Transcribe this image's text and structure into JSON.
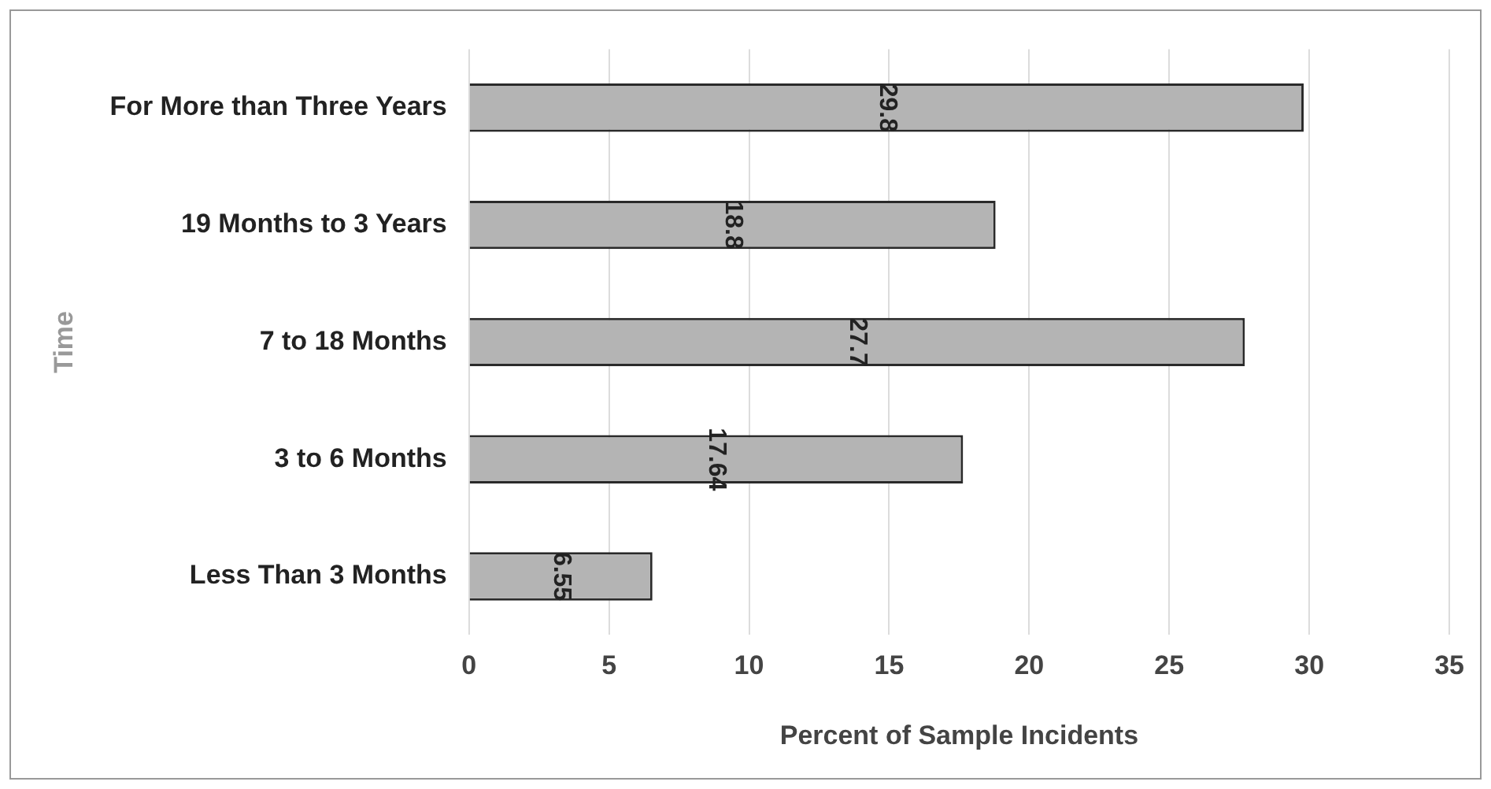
{
  "chart_data": {
    "type": "bar",
    "orientation": "horizontal",
    "xlabel": "Percent of Sample Incidents",
    "ylabel": "Time",
    "categories": [
      "For More than Three Years",
      "19 Months to 3 Years",
      "7 to 18 Months",
      "3 to 6 Months",
      "Less Than 3 Months"
    ],
    "values": [
      29.8,
      18.8,
      27.7,
      17.64,
      6.55
    ],
    "color": "#b4b4b4",
    "xlim": [
      0,
      35
    ],
    "xticks": [
      0,
      5,
      10,
      15,
      20,
      25,
      30,
      35
    ],
    "grid": "x",
    "data_labels": true,
    "legend": false
  }
}
